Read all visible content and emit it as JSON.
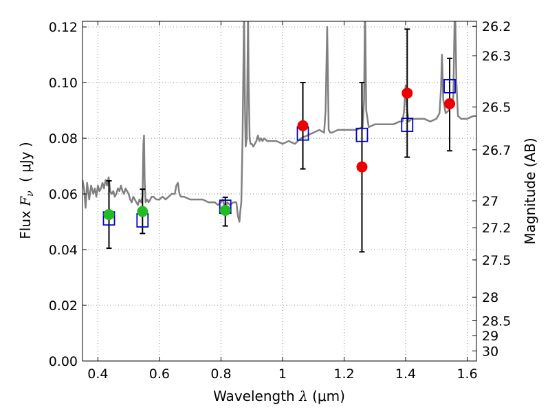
{
  "chart_data": {
    "type": "line",
    "title": "",
    "xlabel": {
      "prefix": "Wavelength",
      "symbol": "λ",
      "unit": "(μm)"
    },
    "ylabel": {
      "prefix": "Flux",
      "symbol": "F",
      "subscript": "ν",
      "unit": "( μJy )"
    },
    "y2label": "Magnitude (AB)",
    "xlim": [
      0.35,
      1.63
    ],
    "ylim": [
      0.0,
      0.122
    ],
    "grid": true,
    "x_ticks": [
      {
        "value": 0.4,
        "label": "0.4"
      },
      {
        "value": 0.6,
        "label": "0.6"
      },
      {
        "value": 0.8,
        "label": "0.8"
      },
      {
        "value": 1.0,
        "label": "1"
      },
      {
        "value": 1.2,
        "label": "1.2"
      },
      {
        "value": 1.4,
        "label": "1.4"
      },
      {
        "value": 1.6,
        "label": "1.6"
      }
    ],
    "y_ticks": [
      {
        "value": 0.0,
        "label": "0.00"
      },
      {
        "value": 0.02,
        "label": "0.02"
      },
      {
        "value": 0.04,
        "label": "0.04"
      },
      {
        "value": 0.06,
        "label": "0.06"
      },
      {
        "value": 0.08,
        "label": "0.08"
      },
      {
        "value": 0.1,
        "label": "0.10"
      },
      {
        "value": 0.12,
        "label": "0.12"
      }
    ],
    "y2_ticks": [
      {
        "mag": 26.2,
        "label": "26.2"
      },
      {
        "mag": 26.3,
        "label": "26.3"
      },
      {
        "mag": 26.5,
        "label": "26.5"
      },
      {
        "mag": 26.7,
        "label": "26.7"
      },
      {
        "mag": 27.0,
        "label": "27"
      },
      {
        "mag": 27.2,
        "label": "27.2"
      },
      {
        "mag": 27.5,
        "label": "27.5"
      },
      {
        "mag": 28.0,
        "label": "28"
      },
      {
        "mag": 28.5,
        "label": "28.5"
      },
      {
        "mag": 29.0,
        "label": "29"
      },
      {
        "mag": 30.0,
        "label": "30"
      }
    ],
    "colors": {
      "model": "#808080",
      "model_photometry": "#0000cc",
      "observed_optical": "#22bb22",
      "observed_nir": "#ee0000",
      "errorbar": "#000000",
      "grid": "#888888"
    },
    "model_spectrum": {
      "x": [
        0.35,
        0.355,
        0.36,
        0.365,
        0.372,
        0.378,
        0.385,
        0.39,
        0.395,
        0.4,
        0.405,
        0.41,
        0.415,
        0.42,
        0.425,
        0.43,
        0.435,
        0.44,
        0.445,
        0.45,
        0.455,
        0.46,
        0.465,
        0.47,
        0.475,
        0.48,
        0.485,
        0.49,
        0.495,
        0.5,
        0.505,
        0.51,
        0.515,
        0.52,
        0.525,
        0.53,
        0.535,
        0.54,
        0.545,
        0.548,
        0.55,
        0.552,
        0.555,
        0.56,
        0.565,
        0.57,
        0.575,
        0.58,
        0.59,
        0.6,
        0.61,
        0.62,
        0.63,
        0.64,
        0.65,
        0.655,
        0.66,
        0.665,
        0.67,
        0.68,
        0.7,
        0.72,
        0.74,
        0.76,
        0.78,
        0.79,
        0.8,
        0.805,
        0.81,
        0.815,
        0.82,
        0.83,
        0.84,
        0.85,
        0.855,
        0.86,
        0.862,
        0.866,
        0.87,
        0.875,
        0.878,
        0.88,
        0.884,
        0.888,
        0.89,
        0.893,
        0.896,
        0.9,
        0.905,
        0.91,
        0.915,
        0.92,
        0.925,
        0.93,
        0.935,
        0.94,
        0.95,
        0.96,
        0.98,
        1.0,
        1.02,
        1.04,
        1.06,
        1.08,
        1.1,
        1.12,
        1.135,
        1.14,
        1.145,
        1.15,
        1.155,
        1.16,
        1.18,
        1.2,
        1.24,
        1.26,
        1.265,
        1.268,
        1.272,
        1.28,
        1.3,
        1.32,
        1.34,
        1.36,
        1.38,
        1.39,
        1.395,
        1.4,
        1.405,
        1.41,
        1.42,
        1.44,
        1.46,
        1.48,
        1.5,
        1.51,
        1.515,
        1.518,
        1.522,
        1.53,
        1.54,
        1.55,
        1.555,
        1.56,
        1.565,
        1.57,
        1.58,
        1.6,
        1.62,
        1.63
      ],
      "y": [
        0.065,
        0.062,
        0.055,
        0.064,
        0.058,
        0.063,
        0.06,
        0.062,
        0.059,
        0.063,
        0.061,
        0.062,
        0.064,
        0.062,
        0.065,
        0.063,
        0.066,
        0.061,
        0.06,
        0.061,
        0.059,
        0.06,
        0.062,
        0.061,
        0.063,
        0.061,
        0.06,
        0.062,
        0.061,
        0.06,
        0.058,
        0.057,
        0.059,
        0.058,
        0.057,
        0.056,
        0.058,
        0.057,
        0.059,
        0.078,
        0.081,
        0.065,
        0.057,
        0.058,
        0.057,
        0.058,
        0.059,
        0.059,
        0.058,
        0.058,
        0.059,
        0.058,
        0.059,
        0.06,
        0.06,
        0.063,
        0.064,
        0.06,
        0.059,
        0.059,
        0.058,
        0.058,
        0.058,
        0.057,
        0.057,
        0.056,
        0.057,
        0.058,
        0.056,
        0.055,
        0.057,
        0.056,
        0.057,
        0.057,
        0.052,
        0.05,
        0.053,
        0.057,
        0.08,
        0.125,
        0.09,
        0.077,
        0.08,
        0.126,
        0.1,
        0.08,
        0.078,
        0.078,
        0.077,
        0.078,
        0.079,
        0.081,
        0.079,
        0.08,
        0.079,
        0.08,
        0.079,
        0.079,
        0.079,
        0.078,
        0.079,
        0.078,
        0.08,
        0.081,
        0.082,
        0.083,
        0.082,
        0.09,
        0.12,
        0.083,
        0.082,
        0.082,
        0.083,
        0.083,
        0.083,
        0.084,
        0.094,
        0.13,
        0.09,
        0.084,
        0.085,
        0.085,
        0.085,
        0.085,
        0.086,
        0.086,
        0.09,
        0.099,
        0.09,
        0.086,
        0.087,
        0.087,
        0.087,
        0.086,
        0.087,
        0.089,
        0.098,
        0.11,
        0.094,
        0.089,
        0.09,
        0.092,
        0.095,
        0.13,
        0.1,
        0.088,
        0.087,
        0.087,
        0.088,
        0.088
      ]
    },
    "model_photometry": {
      "name": "model",
      "x": [
        0.436,
        0.545,
        0.814,
        1.066,
        1.258,
        1.405,
        1.543
      ],
      "y": [
        0.0512,
        0.0505,
        0.0554,
        0.0817,
        0.0812,
        0.0848,
        0.0987
      ]
    },
    "observed_optical": {
      "x": [
        0.436,
        0.545,
        0.814
      ],
      "y": [
        0.0526,
        0.0537,
        0.0541
      ],
      "err_low": [
        0.0405,
        0.0458,
        0.0485
      ],
      "err_high": [
        0.0647,
        0.0617,
        0.0588
      ]
    },
    "observed_nir": {
      "x": [
        1.066,
        1.258,
        1.405,
        1.543
      ],
      "y": [
        0.0845,
        0.0697,
        0.0962,
        0.0924
      ],
      "err_low": [
        0.069,
        0.0392,
        0.0732,
        0.0755
      ],
      "err_high": [
        0.1,
        0.1,
        0.1192,
        0.1087
      ]
    }
  }
}
